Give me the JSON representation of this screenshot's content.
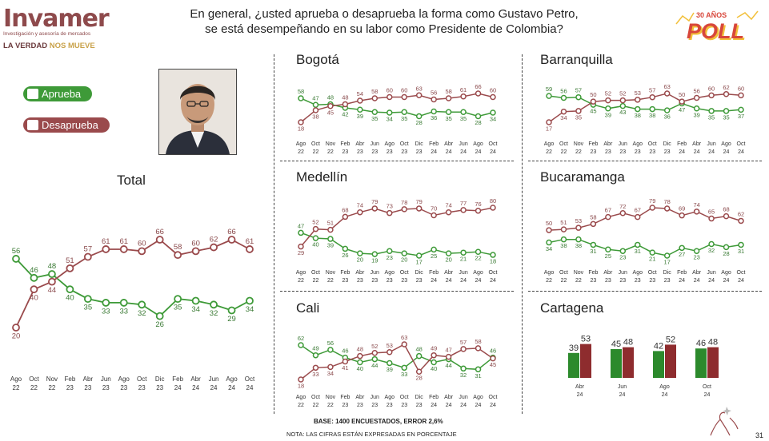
{
  "header": {
    "logo_text": "Invamer",
    "logo_subtitle": "Investigación y asesoría de mercados",
    "logo_tagline_1": "LA VERDAD",
    "logo_tagline_2": "NOS MUEVE",
    "question_line1": "En general, ¿usted aprueba o desaprueba la forma como Gustavo Petro,",
    "question_line2": "se está desempeñando en su labor como Presidente de Colombia?",
    "poll_logo_years": "30 AÑOS",
    "poll_logo_word": "POLL"
  },
  "legend": {
    "aprueba": "Aprueba",
    "desaprueba": "Desaprueba",
    "aprueba_color": "#3e9a38",
    "desaprueba_color": "#9a4a4c",
    "icons": [
      "thumbs-up-icon",
      "thumbs-down-icon"
    ]
  },
  "footer": {
    "base": "BASE: 1400 ENCUESTADOS, ERROR 2,6%",
    "note": "NOTA: LAS CIFRAS ESTÁN EXPRESADAS EN PORCENTAJE",
    "page": "31"
  },
  "chart_data": [
    {
      "id": "total",
      "type": "line",
      "title": "Total",
      "categories": [
        "Ago 22",
        "Oct 22",
        "Nov 22",
        "Feb 23",
        "Abr 23",
        "Jun 23",
        "Ago 23",
        "Oct 23",
        "Dic 23",
        "Feb 24",
        "Abr 24",
        "Jun 24",
        "Ago 24",
        "Oct 24"
      ],
      "series": [
        {
          "name": "Aprueba",
          "values": [
            56,
            46,
            48,
            40,
            35,
            33,
            33,
            32,
            26,
            35,
            34,
            32,
            29,
            34
          ]
        },
        {
          "name": "Desaprueba",
          "values": [
            20,
            40,
            44,
            51,
            57,
            61,
            61,
            60,
            66,
            58,
            60,
            62,
            66,
            61
          ]
        }
      ]
    },
    {
      "id": "bogota",
      "type": "line",
      "title": "Bogotá",
      "categories": [
        "Ago 22",
        "Oct 22",
        "Nov 22",
        "Feb 23",
        "Abr 23",
        "Jun 23",
        "Ago 23",
        "Oct 23",
        "Dic 23",
        "Feb 24",
        "Abr 24",
        "Jun 24",
        "Ago 24",
        "Oct 24"
      ],
      "series": [
        {
          "name": "Aprueba",
          "values": [
            58,
            47,
            48,
            42,
            39,
            35,
            34,
            35,
            28,
            36,
            35,
            35,
            28,
            34
          ]
        },
        {
          "name": "Desaprueba",
          "values": [
            18,
            38,
            45,
            48,
            54,
            58,
            60,
            60,
            63,
            56,
            58,
            61,
            66,
            60
          ]
        }
      ]
    },
    {
      "id": "barranquilla",
      "type": "line",
      "title": "Barranquilla",
      "categories": [
        "Ago 22",
        "Oct 22",
        "Nov 22",
        "Feb 23",
        "Abr 23",
        "Jun 23",
        "Ago 23",
        "Oct 23",
        "Dic 23",
        "Feb 24",
        "Abr 24",
        "Jun 24",
        "Ago 24",
        "Oct 24"
      ],
      "series": [
        {
          "name": "Aprueba",
          "values": [
            59,
            56,
            57,
            45,
            39,
            43,
            38,
            38,
            36,
            47,
            39,
            35,
            35,
            37
          ]
        },
        {
          "name": "Desaprueba",
          "values": [
            17,
            34,
            35,
            50,
            52,
            52,
            53,
            57,
            63,
            50,
            56,
            60,
            62,
            60
          ]
        }
      ]
    },
    {
      "id": "medellin",
      "type": "line",
      "title": "Medellín",
      "categories": [
        "Ago 22",
        "Oct 22",
        "Nov 22",
        "Feb 23",
        "Abr 23",
        "Jun 23",
        "Ago 23",
        "Oct 23",
        "Dic 23",
        "Feb 24",
        "Abr 24",
        "Jun 24",
        "Ago 24",
        "Oct 24"
      ],
      "series": [
        {
          "name": "Aprueba",
          "values": [
            47,
            40,
            39,
            26,
            20,
            19,
            23,
            20,
            17,
            25,
            20,
            21,
            22,
            18
          ]
        },
        {
          "name": "Desaprueba",
          "values": [
            29,
            52,
            51,
            68,
            74,
            79,
            73,
            78,
            79,
            70,
            74,
            77,
            76,
            80
          ]
        }
      ]
    },
    {
      "id": "bucaramanga",
      "type": "line",
      "title": "Bucaramanga",
      "categories": [
        "Ago 22",
        "Oct 22",
        "Nov 22",
        "Feb 23",
        "Abr 23",
        "Jun 23",
        "Ago 23",
        "Oct 23",
        "Dic 23",
        "Feb 24",
        "Abr 24",
        "Jun 24",
        "Ago 24",
        "Oct 24"
      ],
      "series": [
        {
          "name": "Aprueba",
          "values": [
            34,
            38,
            38,
            31,
            25,
            23,
            31,
            21,
            17,
            27,
            23,
            32,
            28,
            31
          ]
        },
        {
          "name": "Desaprueba",
          "values": [
            50,
            51,
            53,
            58,
            67,
            72,
            67,
            79,
            78,
            69,
            74,
            65,
            68,
            62
          ]
        }
      ]
    },
    {
      "id": "cali",
      "type": "line",
      "title": "Cali",
      "categories": [
        "Ago 22",
        "Oct 22",
        "Nov 22",
        "Feb 23",
        "Abr 23",
        "Jun 23",
        "Ago 23",
        "Oct 23",
        "Dic 23",
        "Feb 24",
        "Abr 24",
        "Jun 24",
        "Ago 24",
        "Oct 24"
      ],
      "series": [
        {
          "name": "Aprueba",
          "values": [
            62,
            49,
            56,
            46,
            40,
            44,
            39,
            33,
            48,
            40,
            44,
            32,
            31,
            46
          ]
        },
        {
          "name": "Desaprueba",
          "values": [
            18,
            33,
            34,
            41,
            48,
            52,
            53,
            63,
            28,
            49,
            47,
            57,
            58,
            45
          ]
        }
      ]
    },
    {
      "id": "cartagena",
      "type": "bar",
      "title": "Cartagena",
      "categories": [
        "Abr 24",
        "Jun 24",
        "Ago 24",
        "Oct 24"
      ],
      "series": [
        {
          "name": "Aprueba",
          "values": [
            39,
            45,
            42,
            46
          ]
        },
        {
          "name": "Desaprueba",
          "values": [
            53,
            48,
            52,
            48
          ]
        }
      ]
    }
  ]
}
